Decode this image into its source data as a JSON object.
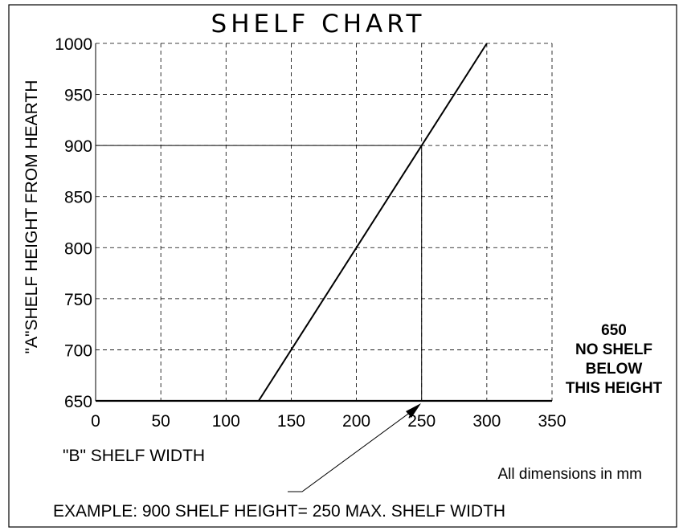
{
  "chart_data": {
    "type": "line",
    "title": "SHELF CHART",
    "xlabel": "\"B\" SHELF WIDTH",
    "ylabel": "\"A\"SHELF HEIGHT FROM HEARTH",
    "xlim": [
      0,
      350
    ],
    "ylim": [
      650,
      1000
    ],
    "x_ticks": [
      "0",
      "50",
      "100",
      "150",
      "200",
      "250",
      "300",
      "350"
    ],
    "y_ticks": [
      "650",
      "700",
      "750",
      "800",
      "850",
      "900",
      "950",
      "1000"
    ],
    "grid": true,
    "series": [
      {
        "x": [
          125,
          300
        ],
        "y": [
          650,
          1000
        ]
      }
    ],
    "example_point": {
      "x": 250,
      "y": 900
    },
    "minimum_height_note": [
      "650",
      "NO SHELF",
      "BELOW",
      "THIS HEIGHT"
    ],
    "units_note": "All dimensions in mm",
    "example_text": "EXAMPLE: 900 SHELF HEIGHT= 250 MAX. SHELF WIDTH"
  }
}
